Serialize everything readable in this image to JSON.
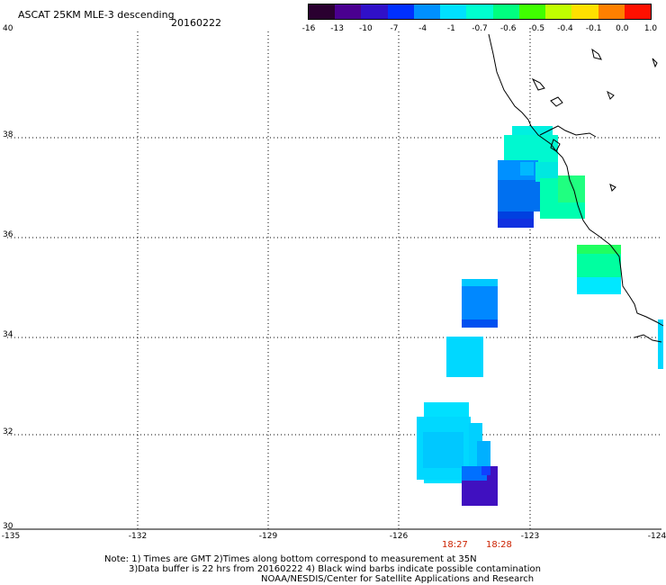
{
  "title": "ASCAT 25KM MLE-3 descending",
  "date": "20160222",
  "colorbar": {
    "ticks": [
      "-16",
      "-13",
      "-10",
      "-7",
      "-4",
      "-1",
      "-0.7",
      "-0.6",
      "-0.5",
      "-0.4",
      "-0.1",
      "0.0",
      "1.0"
    ],
    "colors": [
      "#2a0030",
      "#4a0090",
      "#3010c8",
      "#0030ff",
      "#0090ff",
      "#00e0ff",
      "#00ffd0",
      "#00ff80",
      "#40ff00",
      "#c0ff00",
      "#ffe000",
      "#ff8000",
      "#ff1000"
    ]
  },
  "axes": {
    "lat_labels": [
      "40",
      "38",
      "36",
      "34",
      "32",
      "30"
    ],
    "lon_labels": [
      "-135",
      "-132",
      "-129",
      "-126",
      "-123",
      "-124"
    ]
  },
  "time_labels": [
    "18:27",
    "18:28"
  ],
  "notes": [
    "Note: 1) Times are GMT 2)Times along bottom correspond to measurement at 35N",
    "3)Data buffer is 22 hrs from 20160222 4) Black wind barbs indicate possible contamination",
    "NOAA/NESDIS/Center for Satellite Applications and Research"
  ]
}
